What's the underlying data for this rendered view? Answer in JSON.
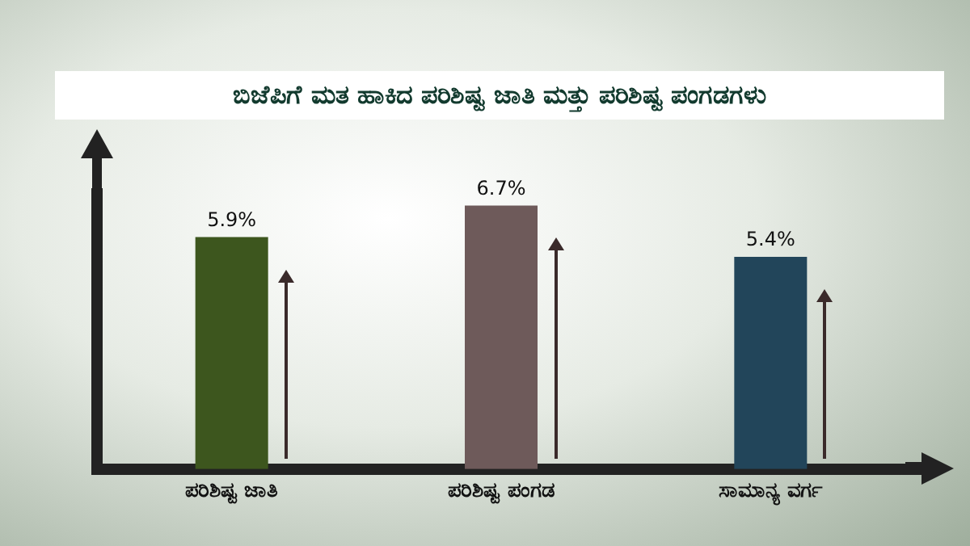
{
  "chart_data": {
    "type": "bar",
    "title": "ಬಿಜೆಪಿಗೆ ಮತ ಹಾಕಿದ ಪರಿಶಿಷ್ಟ ಜಾತಿ ಮತ್ತು ಪರಿಶಿಷ್ಟ ಪಂಗಡಗಳು",
    "categories": [
      "ಪರಿಶಿಷ್ಟ ಜಾತಿ",
      "ಪರಿಶಿಷ್ಟ ಪಂಗಡ",
      "ಸಾಮಾನ್ಯ ವರ್ಗ"
    ],
    "values": [
      5.9,
      6.7,
      5.4
    ],
    "colors": [
      "#3d561e",
      "#6e5a5a",
      "#22455a"
    ],
    "value_labels": [
      "5.9%",
      "6.7%",
      "5.4%"
    ]
  }
}
